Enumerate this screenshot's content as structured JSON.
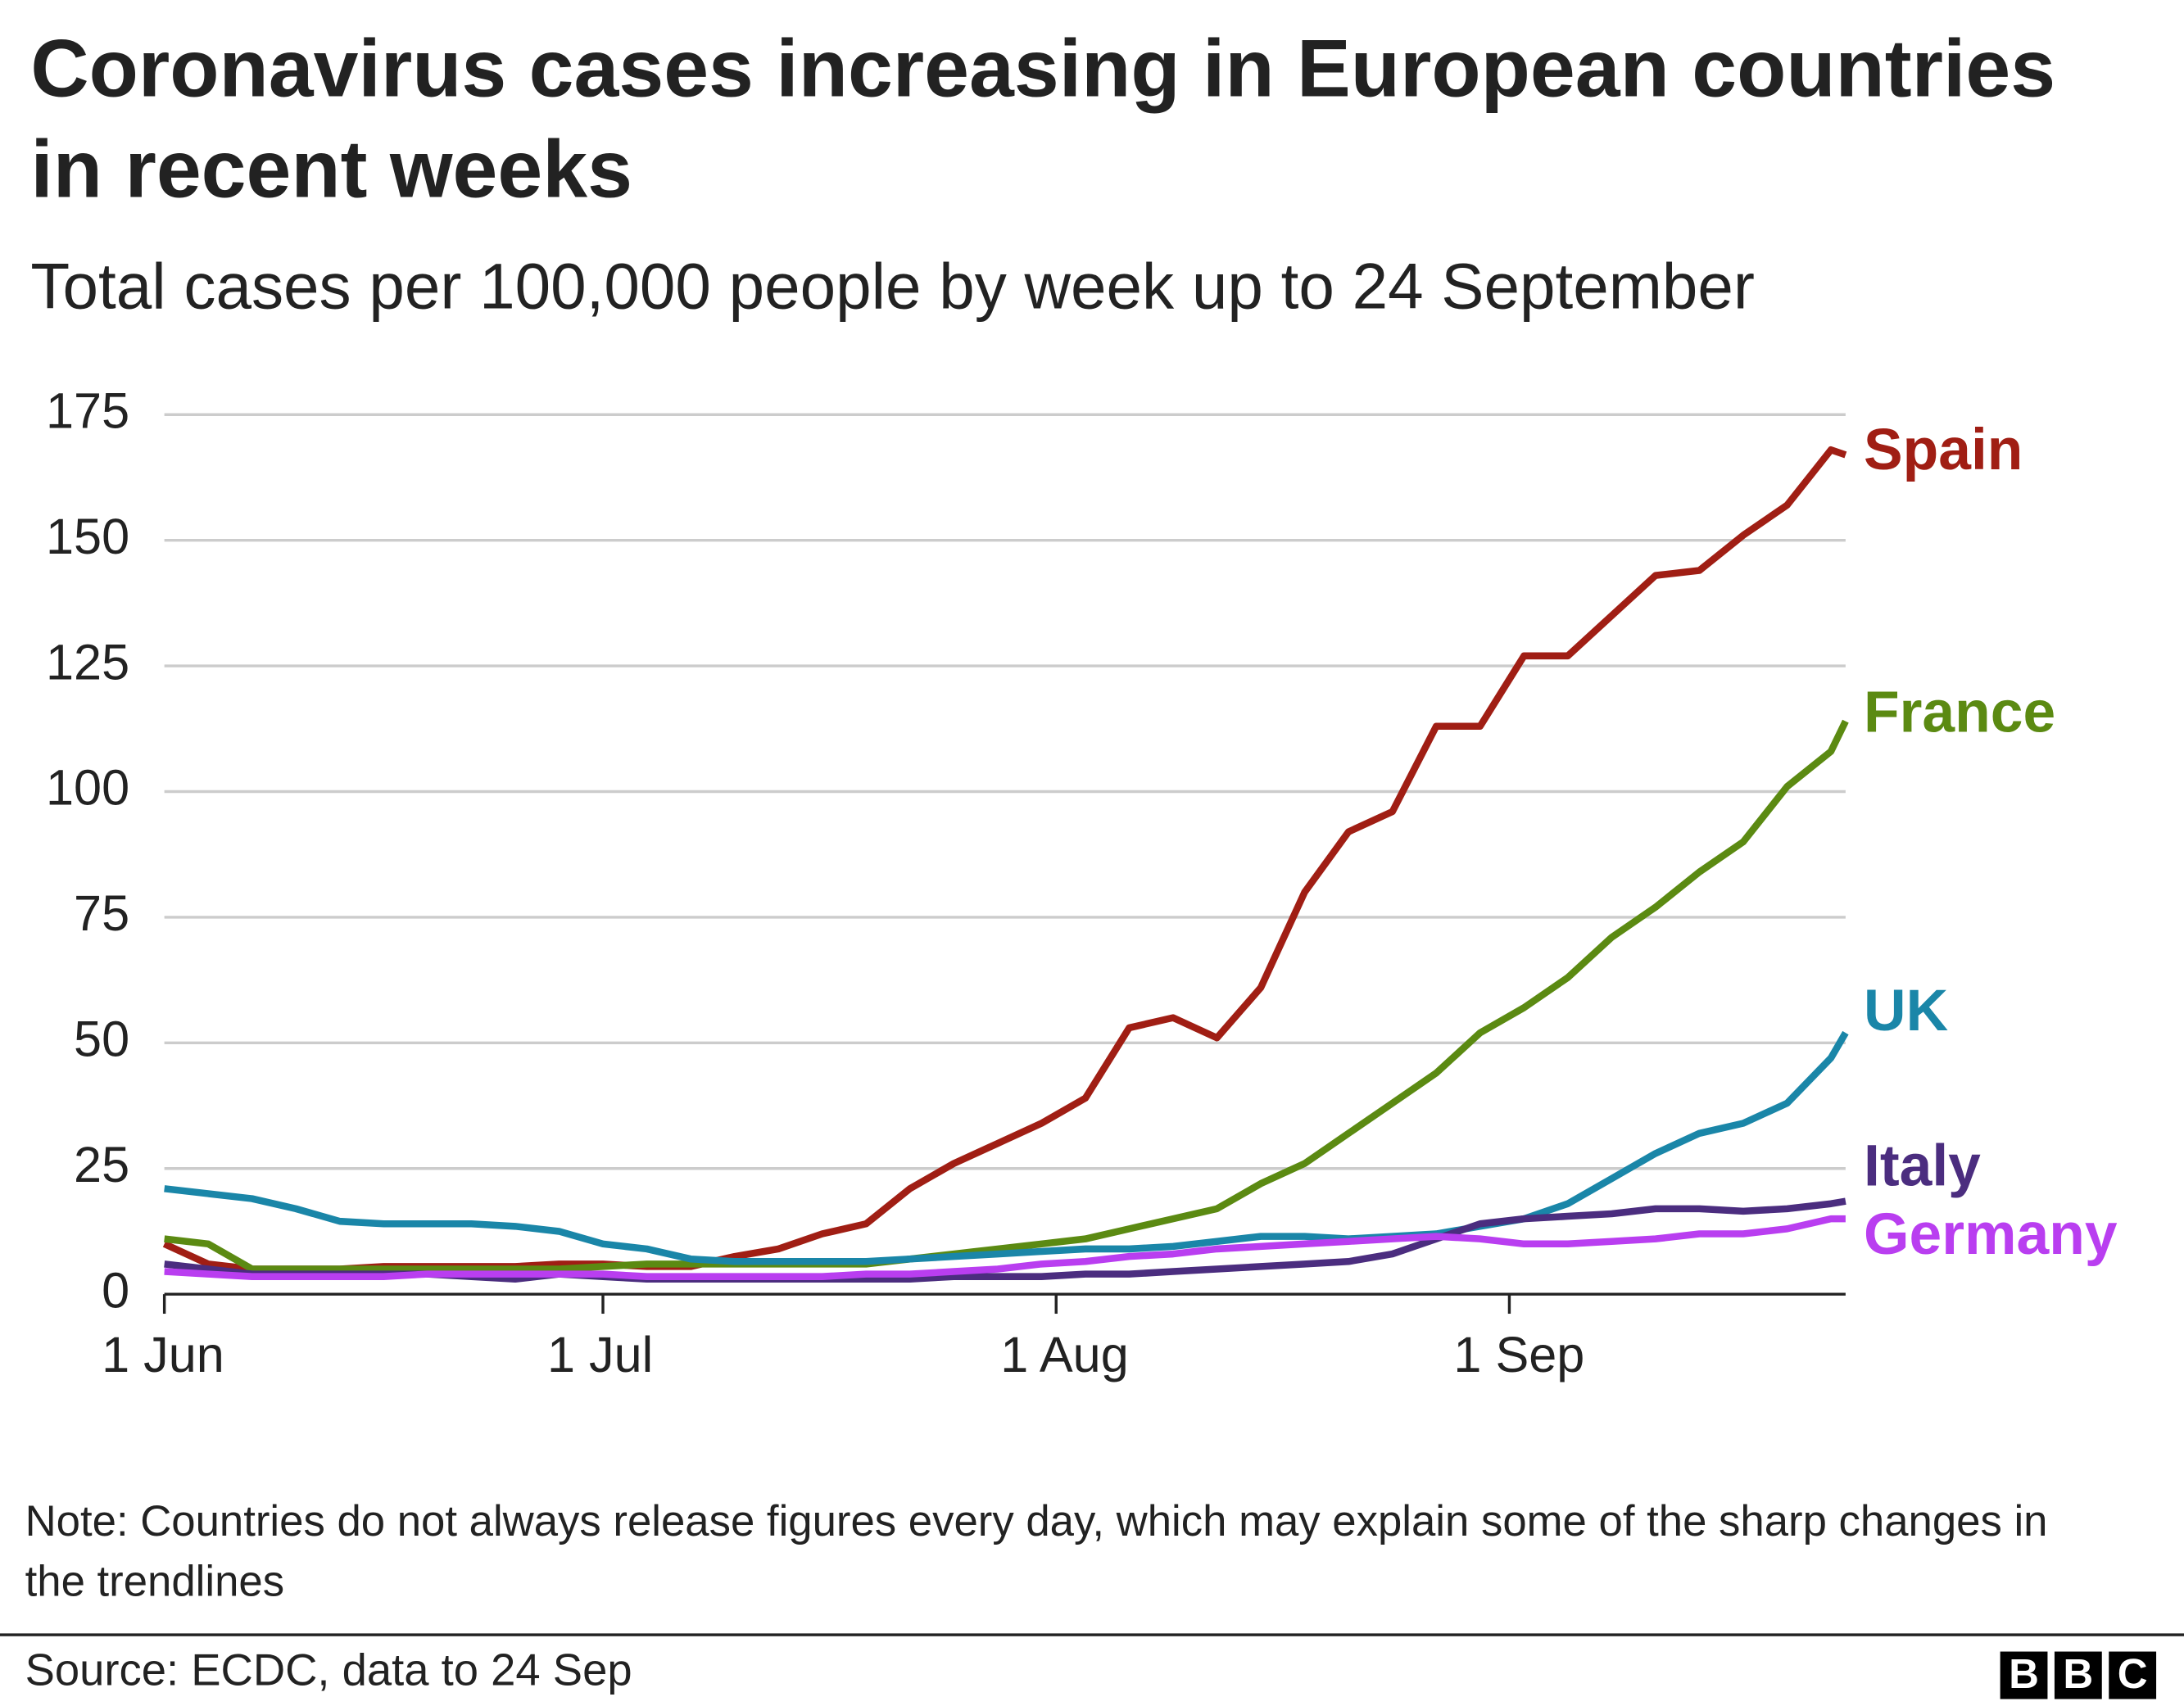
{
  "chart_data": {
    "type": "line",
    "title": "Coronavirus cases increasing in European countries in recent weeks",
    "subtitle": "Total cases per 100,000 people by week up to 24 September",
    "note": "Note: Countries do not always release figures every day, which may explain some of the sharp changes in the trendlines",
    "source": "Source: ECDC, data to 24 Sep",
    "logo": [
      "B",
      "B",
      "C"
    ],
    "x": [
      0,
      3,
      6,
      9,
      12,
      15,
      18,
      21,
      24,
      27,
      30,
      33,
      36,
      39,
      42,
      45,
      48,
      51,
      54,
      57,
      60,
      63,
      66,
      69,
      72,
      75,
      78,
      81,
      84,
      87,
      90,
      93,
      96,
      99,
      102,
      105,
      108,
      111,
      114,
      115
    ],
    "xlim": [
      0,
      115
    ],
    "xticks": [
      {
        "value": 0,
        "label": "1 Jun"
      },
      {
        "value": 30,
        "label": "1 Jul"
      },
      {
        "value": 61,
        "label": "1 Aug"
      },
      {
        "value": 92,
        "label": "1 Sep"
      }
    ],
    "ylim": [
      0,
      175
    ],
    "yticks": [
      0,
      25,
      50,
      75,
      100,
      125,
      150,
      175
    ],
    "grid": true,
    "series": [
      {
        "name": "Spain",
        "color": "#a01e14",
        "values": [
          10,
          6,
          5,
          5,
          5,
          5.5,
          5.5,
          5.5,
          5.5,
          6,
          6,
          5.5,
          5.5,
          7.5,
          9,
          12,
          14,
          21,
          26,
          30,
          34,
          39,
          53,
          55,
          51,
          61,
          80,
          92,
          96,
          113,
          113,
          127,
          127,
          135,
          143,
          144,
          151,
          157,
          168,
          167
        ]
      },
      {
        "name": "France",
        "color": "#5b8a12",
        "values": [
          11,
          10,
          5,
          5,
          5,
          5,
          5,
          5,
          5,
          5,
          5.5,
          6,
          6,
          6,
          6,
          6,
          6,
          7,
          8,
          9,
          10,
          11,
          13,
          15,
          17,
          22,
          26,
          32,
          38,
          44,
          52,
          57,
          63,
          71,
          77,
          84,
          90,
          101,
          108,
          114
        ]
      },
      {
        "name": "UK",
        "color": "#1a86a8",
        "values": [
          21,
          20,
          19,
          17,
          14.5,
          14,
          14,
          14,
          13.5,
          12.5,
          10,
          9,
          7,
          6.5,
          6.5,
          6.5,
          6.5,
          7,
          7.5,
          8,
          8.5,
          9,
          9,
          9.5,
          10.5,
          11.5,
          11.5,
          11,
          11.5,
          12,
          13.5,
          15,
          18,
          23,
          28,
          32,
          34,
          38,
          47,
          52
        ]
      },
      {
        "name": "Italy",
        "color": "#4b2d7f",
        "values": [
          6,
          5,
          4,
          4,
          4,
          4,
          4,
          3.5,
          3,
          4,
          3.5,
          3,
          3,
          3,
          3,
          3,
          3,
          3,
          3.5,
          3.5,
          3.5,
          4,
          4,
          4.5,
          5,
          5.5,
          6,
          6.5,
          8,
          11,
          14,
          15,
          15.5,
          16,
          17,
          17,
          16.5,
          17,
          18,
          18.5
        ]
      },
      {
        "name": "Germany",
        "color": "#b93ef0",
        "values": [
          4.5,
          4,
          3.5,
          3.5,
          3.5,
          3.5,
          4,
          4,
          4,
          4,
          4,
          3.5,
          3.5,
          3.5,
          3.5,
          3.5,
          4,
          4,
          4.5,
          5,
          6,
          6.5,
          7.5,
          8,
          9,
          9.5,
          10,
          10.5,
          11,
          11.5,
          11,
          10,
          10,
          10.5,
          11,
          12,
          12,
          13,
          15,
          15
        ]
      }
    ]
  }
}
